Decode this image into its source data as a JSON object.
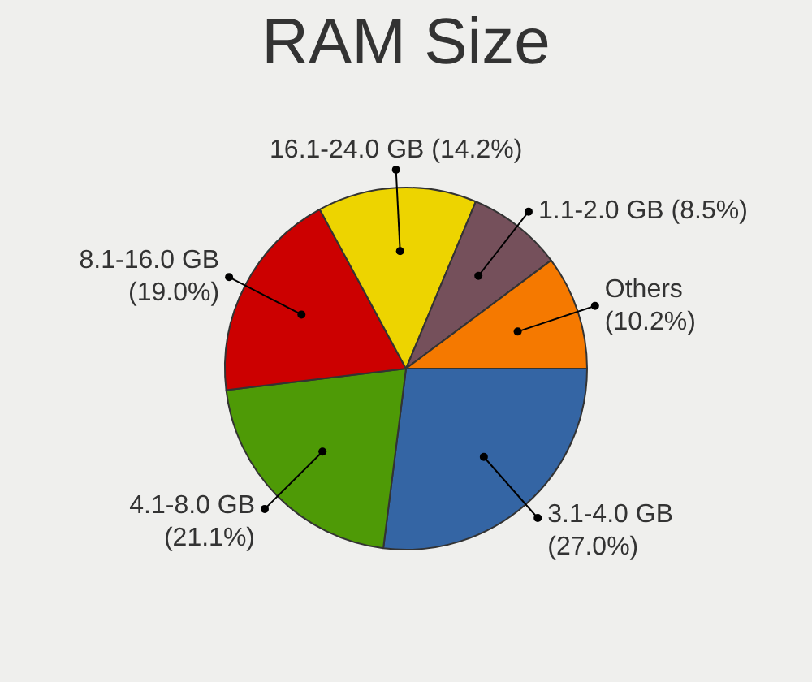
{
  "chart_data": {
    "type": "pie",
    "title": "RAM Size",
    "categories": [
      "3.1-4.0 GB",
      "4.1-8.0 GB",
      "8.1-16.0 GB",
      "16.1-24.0 GB",
      "1.1-2.0 GB",
      "Others"
    ],
    "values": [
      27.0,
      21.1,
      19.0,
      14.2,
      8.5,
      10.2
    ],
    "value_labels": [
      "(27.0%)",
      "(21.1%)",
      "(19.0%)",
      "(14.2%)",
      "(8.5%)",
      "(10.2%)"
    ],
    "colors": [
      "#3465a4",
      "#4e9a06",
      "#cc0000",
      "#edd400",
      "#75505b",
      "#f57900"
    ],
    "legend": false
  }
}
